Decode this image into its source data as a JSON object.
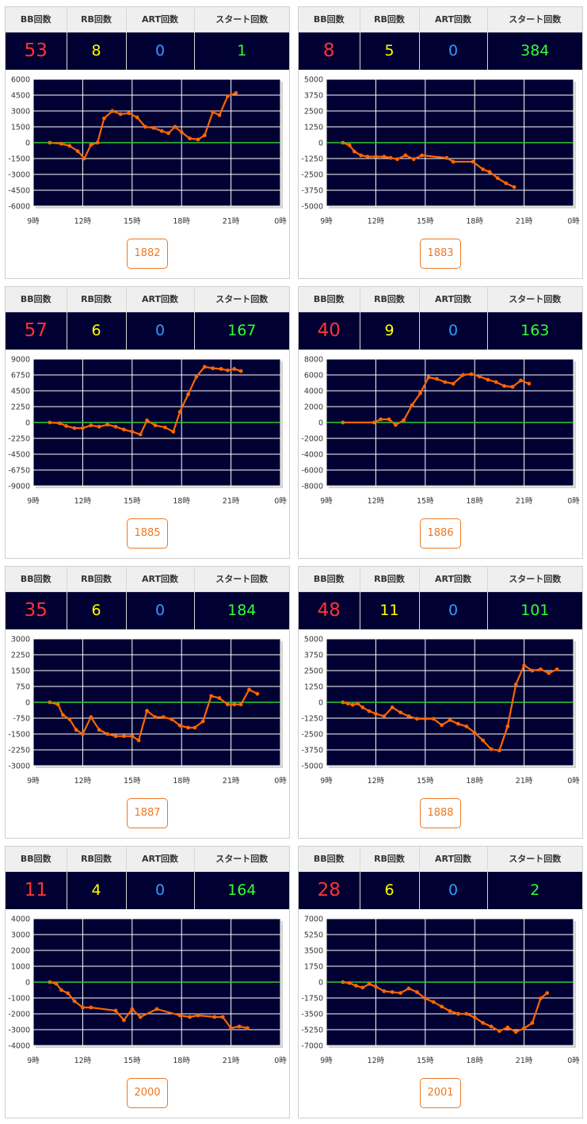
{
  "headers": {
    "bb": "BB回数",
    "rb": "RB回数",
    "art": "ART回数",
    "start": "スタート回数"
  },
  "colors": {
    "plot_bg": "#000033",
    "grid": "#ffffff",
    "zero_line": "#33cc33",
    "series": "#ff6600",
    "bb": "#ff3333",
    "rb": "#ffff00",
    "art": "#3399ff",
    "start": "#33ff33",
    "button": "#ee7722"
  },
  "cards": [
    {
      "id": "1882",
      "stats": {
        "bb": "53",
        "rb": "8",
        "art": "0",
        "start": "1"
      },
      "chart_data": {
        "type": "line",
        "x_ticks": [
          "9時",
          "12時",
          "15時",
          "18時",
          "21時",
          "0時"
        ],
        "x_range": [
          9,
          24
        ],
        "y_ticks": [
          "6000",
          "4500",
          "3000",
          "1500",
          "0",
          "-1500",
          "-3000",
          "-4500",
          "-6000"
        ],
        "ylim": [
          -6000,
          6000
        ],
        "grid": true,
        "points": [
          [
            10,
            0
          ],
          [
            10.7,
            -100
          ],
          [
            11.2,
            -300
          ],
          [
            11.7,
            -800
          ],
          [
            12.1,
            -1500
          ],
          [
            12.5,
            -200
          ],
          [
            12.9,
            0
          ],
          [
            13.3,
            2300
          ],
          [
            13.8,
            3000
          ],
          [
            14.3,
            2700
          ],
          [
            14.8,
            2800
          ],
          [
            15.3,
            2400
          ],
          [
            15.8,
            1500
          ],
          [
            16.3,
            1400
          ],
          [
            16.8,
            1100
          ],
          [
            17.2,
            900
          ],
          [
            17.6,
            1500
          ],
          [
            18,
            1000
          ],
          [
            18.5,
            400
          ],
          [
            19,
            300
          ],
          [
            19.4,
            700
          ],
          [
            19.9,
            2900
          ],
          [
            20.3,
            2600
          ],
          [
            20.8,
            4400
          ],
          [
            21.3,
            4700
          ]
        ]
      }
    },
    {
      "id": "1883",
      "stats": {
        "bb": "8",
        "rb": "5",
        "art": "0",
        "start": "384"
      },
      "chart_data": {
        "type": "line",
        "x_ticks": [
          "9時",
          "12時",
          "15時",
          "18時",
          "21時",
          "0時"
        ],
        "x_range": [
          9,
          24
        ],
        "y_ticks": [
          "5000",
          "3750",
          "2500",
          "1250",
          "0",
          "-1250",
          "-2500",
          "-3750",
          "-5000"
        ],
        "ylim": [
          -5000,
          5000
        ],
        "grid": true,
        "points": [
          [
            10,
            0
          ],
          [
            10.4,
            -200
          ],
          [
            10.7,
            -700
          ],
          [
            11.1,
            -1000
          ],
          [
            11.5,
            -1100
          ],
          [
            12,
            -1100
          ],
          [
            12.5,
            -1100
          ],
          [
            12.9,
            -1200
          ],
          [
            13.3,
            -1300
          ],
          [
            13.8,
            -1000
          ],
          [
            14.3,
            -1300
          ],
          [
            14.8,
            -1000
          ],
          [
            16.3,
            -1200
          ],
          [
            16.7,
            -1500
          ],
          [
            17.9,
            -1500
          ],
          [
            18.5,
            -2100
          ],
          [
            18.9,
            -2300
          ],
          [
            19.4,
            -2800
          ],
          [
            19.9,
            -3200
          ],
          [
            20.4,
            -3500
          ]
        ]
      }
    },
    {
      "id": "1885",
      "stats": {
        "bb": "57",
        "rb": "6",
        "art": "0",
        "start": "167"
      },
      "chart_data": {
        "type": "line",
        "x_ticks": [
          "9時",
          "12時",
          "15時",
          "18時",
          "21時",
          "0時"
        ],
        "x_range": [
          9,
          24
        ],
        "y_ticks": [
          "9000",
          "6750",
          "4500",
          "2250",
          "0",
          "-2250",
          "-4500",
          "-6750",
          "-9000"
        ],
        "ylim": [
          -9000,
          9000
        ],
        "grid": true,
        "points": [
          [
            10,
            0
          ],
          [
            10.6,
            -100
          ],
          [
            11,
            -500
          ],
          [
            11.5,
            -800
          ],
          [
            12,
            -800
          ],
          [
            12.5,
            -400
          ],
          [
            13,
            -600
          ],
          [
            13.5,
            -300
          ],
          [
            14,
            -600
          ],
          [
            14.5,
            -1000
          ],
          [
            15,
            -1300
          ],
          [
            15.5,
            -1700
          ],
          [
            15.9,
            300
          ],
          [
            16.4,
            -400
          ],
          [
            17,
            -700
          ],
          [
            17.5,
            -1300
          ],
          [
            17.9,
            1500
          ],
          [
            18.4,
            4000
          ],
          [
            18.9,
            6500
          ],
          [
            19.4,
            7900
          ],
          [
            19.9,
            7700
          ],
          [
            20.4,
            7600
          ],
          [
            20.8,
            7400
          ],
          [
            21.2,
            7600
          ],
          [
            21.6,
            7300
          ]
        ]
      }
    },
    {
      "id": "1886",
      "stats": {
        "bb": "40",
        "rb": "9",
        "art": "0",
        "start": "163"
      },
      "chart_data": {
        "type": "line",
        "x_ticks": [
          "9時",
          "12時",
          "15時",
          "18時",
          "21時",
          "0時"
        ],
        "x_range": [
          9,
          24
        ],
        "y_ticks": [
          "8000",
          "6000",
          "4000",
          "2000",
          "0",
          "-2000",
          "-4000",
          "-6000",
          "-8000"
        ],
        "ylim": [
          -8000,
          8000
        ],
        "grid": true,
        "points": [
          [
            10,
            0
          ],
          [
            11.9,
            0
          ],
          [
            12.3,
            400
          ],
          [
            12.8,
            400
          ],
          [
            13.2,
            -300
          ],
          [
            13.7,
            300
          ],
          [
            14.2,
            2200
          ],
          [
            14.7,
            3700
          ],
          [
            15.2,
            5700
          ],
          [
            15.7,
            5500
          ],
          [
            16.2,
            5100
          ],
          [
            16.7,
            4900
          ],
          [
            17.3,
            6000
          ],
          [
            17.8,
            6100
          ],
          [
            18.3,
            5800
          ],
          [
            18.8,
            5400
          ],
          [
            19.3,
            5100
          ],
          [
            19.8,
            4600
          ],
          [
            20.3,
            4500
          ],
          [
            20.8,
            5300
          ],
          [
            21.3,
            4900
          ]
        ]
      }
    },
    {
      "id": "1887",
      "stats": {
        "bb": "35",
        "rb": "6",
        "art": "0",
        "start": "184"
      },
      "chart_data": {
        "type": "line",
        "x_ticks": [
          "9時",
          "12時",
          "15時",
          "18時",
          "21時",
          "0時"
        ],
        "x_range": [
          9,
          24
        ],
        "y_ticks": [
          "3000",
          "2250",
          "1500",
          "750",
          "0",
          "-750",
          "-1500",
          "-2250",
          "-3000"
        ],
        "ylim": [
          -3000,
          3000
        ],
        "grid": true,
        "points": [
          [
            10,
            0
          ],
          [
            10.5,
            -100
          ],
          [
            10.8,
            -600
          ],
          [
            11.2,
            -800
          ],
          [
            11.6,
            -1300
          ],
          [
            12,
            -1500
          ],
          [
            12.5,
            -700
          ],
          [
            13,
            -1300
          ],
          [
            13.5,
            -1500
          ],
          [
            14,
            -1600
          ],
          [
            14.5,
            -1600
          ],
          [
            15,
            -1600
          ],
          [
            15.4,
            -1800
          ],
          [
            15.9,
            -400
          ],
          [
            16.4,
            -700
          ],
          [
            16.9,
            -700
          ],
          [
            17.4,
            -800
          ],
          [
            17.9,
            -1100
          ],
          [
            18.4,
            -1200
          ],
          [
            18.8,
            -1200
          ],
          [
            19.3,
            -900
          ],
          [
            19.8,
            300
          ],
          [
            20.3,
            200
          ],
          [
            20.8,
            -100
          ],
          [
            21.2,
            -100
          ],
          [
            21.6,
            -100
          ],
          [
            22.1,
            600
          ],
          [
            22.6,
            400
          ]
        ]
      }
    },
    {
      "id": "1888",
      "stats": {
        "bb": "48",
        "rb": "11",
        "art": "0",
        "start": "101"
      },
      "chart_data": {
        "type": "line",
        "x_ticks": [
          "9時",
          "12時",
          "15時",
          "18時",
          "21時",
          "0時"
        ],
        "x_range": [
          9,
          24
        ],
        "y_ticks": [
          "5000",
          "3750",
          "2500",
          "1250",
          "0",
          "-1250",
          "-2500",
          "-3750",
          "-5000"
        ],
        "ylim": [
          -5000,
          5000
        ],
        "grid": true,
        "points": [
          [
            10,
            0
          ],
          [
            10.3,
            -100
          ],
          [
            10.6,
            -200
          ],
          [
            10.9,
            -100
          ],
          [
            11.2,
            -400
          ],
          [
            11.6,
            -700
          ],
          [
            12,
            -900
          ],
          [
            12.5,
            -1100
          ],
          [
            13,
            -400
          ],
          [
            13.5,
            -800
          ],
          [
            14,
            -1100
          ],
          [
            14.5,
            -1300
          ],
          [
            15,
            -1300
          ],
          [
            15.5,
            -1300
          ],
          [
            16,
            -1800
          ],
          [
            16.5,
            -1400
          ],
          [
            17,
            -1700
          ],
          [
            17.5,
            -1900
          ],
          [
            18,
            -2400
          ],
          [
            18.5,
            -3000
          ],
          [
            19,
            -3700
          ],
          [
            19.5,
            -3800
          ],
          [
            20,
            -1900
          ],
          [
            20.5,
            1400
          ],
          [
            21,
            2900
          ],
          [
            21.5,
            2500
          ],
          [
            22,
            2600
          ],
          [
            22.5,
            2300
          ],
          [
            23,
            2600
          ]
        ]
      }
    },
    {
      "id": "2000",
      "stats": {
        "bb": "11",
        "rb": "4",
        "art": "0",
        "start": "164"
      },
      "chart_data": {
        "type": "line",
        "x_ticks": [
          "9時",
          "12時",
          "15時",
          "18時",
          "21時",
          "0時"
        ],
        "x_range": [
          9,
          24
        ],
        "y_ticks": [
          "4000",
          "3000",
          "2000",
          "1000",
          "0",
          "-1000",
          "-2000",
          "-3000",
          "-4000"
        ],
        "ylim": [
          -4000,
          4000
        ],
        "grid": true,
        "points": [
          [
            10,
            0
          ],
          [
            10.4,
            -100
          ],
          [
            10.7,
            -500
          ],
          [
            11.1,
            -700
          ],
          [
            11.5,
            -1200
          ],
          [
            12,
            -1600
          ],
          [
            12.5,
            -1600
          ],
          [
            14,
            -1800
          ],
          [
            14.5,
            -2400
          ],
          [
            15,
            -1700
          ],
          [
            15.5,
            -2200
          ],
          [
            16.5,
            -1700
          ],
          [
            17.9,
            -2100
          ],
          [
            18.5,
            -2200
          ],
          [
            19,
            -2100
          ],
          [
            20,
            -2200
          ],
          [
            20.5,
            -2200
          ],
          [
            21,
            -2900
          ],
          [
            21.5,
            -2800
          ],
          [
            22,
            -2900
          ]
        ]
      }
    },
    {
      "id": "2001",
      "stats": {
        "bb": "28",
        "rb": "6",
        "art": "0",
        "start": "2"
      },
      "chart_data": {
        "type": "line",
        "x_ticks": [
          "9時",
          "12時",
          "15時",
          "18時",
          "21時",
          "0時"
        ],
        "x_range": [
          9,
          24
        ],
        "y_ticks": [
          "7000",
          "5250",
          "3500",
          "1750",
          "0",
          "-1750",
          "-3500",
          "-5250",
          "-7000"
        ],
        "ylim": [
          -7000,
          7000
        ],
        "grid": true,
        "points": [
          [
            10,
            0
          ],
          [
            10.4,
            -100
          ],
          [
            10.8,
            -400
          ],
          [
            11.2,
            -600
          ],
          [
            11.6,
            -200
          ],
          [
            12,
            -500
          ],
          [
            12.5,
            -1000
          ],
          [
            13,
            -1100
          ],
          [
            13.5,
            -1200
          ],
          [
            14,
            -700
          ],
          [
            14.5,
            -1100
          ],
          [
            15,
            -1800
          ],
          [
            15.5,
            -2200
          ],
          [
            16,
            -2700
          ],
          [
            16.5,
            -3200
          ],
          [
            17,
            -3500
          ],
          [
            17.5,
            -3500
          ],
          [
            18,
            -3900
          ],
          [
            18.5,
            -4500
          ],
          [
            19,
            -4900
          ],
          [
            19.5,
            -5400
          ],
          [
            20,
            -5000
          ],
          [
            20.5,
            -5500
          ],
          [
            21,
            -5100
          ],
          [
            21.5,
            -4500
          ],
          [
            22,
            -1800
          ],
          [
            22.4,
            -1200
          ]
        ]
      }
    }
  ]
}
